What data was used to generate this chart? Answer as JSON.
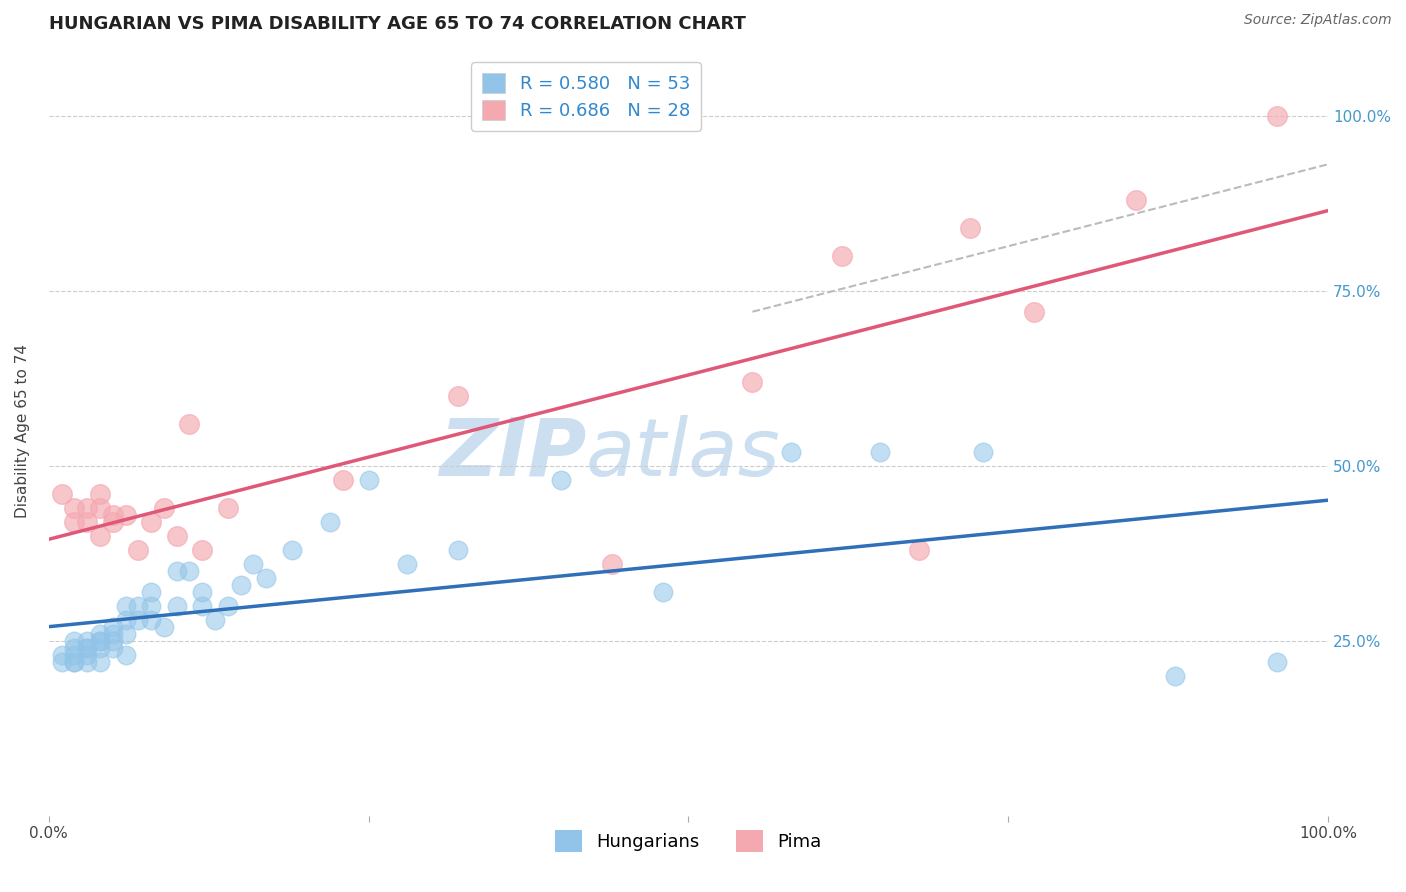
{
  "title": "HUNGARIAN VS PIMA DISABILITY AGE 65 TO 74 CORRELATION CHART",
  "ylabel": "Disability Age 65 to 74",
  "source_text": "Source: ZipAtlas.com",
  "legend_r1": "R = 0.580",
  "legend_n1": "N = 53",
  "legend_r2": "R = 0.686",
  "legend_n2": "N = 28",
  "hungarian_color": "#91c4e8",
  "pima_color": "#f4a8b0",
  "hungarian_line_color": "#3070b8",
  "pima_line_color": "#e05878",
  "dashed_line_color": "#bbbbbb",
  "watermark_color": "#ccdff0",
  "background_color": "#ffffff",
  "grid_color": "#cccccc",
  "ytick_labels": [
    "25.0%",
    "50.0%",
    "75.0%",
    "100.0%"
  ],
  "ytick_values": [
    0.25,
    0.5,
    0.75,
    1.0
  ],
  "xlim": [
    0.0,
    1.0
  ],
  "ylim": [
    0.0,
    1.1
  ],
  "hungarian_x": [
    0.01,
    0.01,
    0.02,
    0.02,
    0.02,
    0.02,
    0.02,
    0.03,
    0.03,
    0.03,
    0.03,
    0.03,
    0.04,
    0.04,
    0.04,
    0.04,
    0.04,
    0.05,
    0.05,
    0.05,
    0.05,
    0.06,
    0.06,
    0.06,
    0.06,
    0.07,
    0.07,
    0.08,
    0.08,
    0.08,
    0.09,
    0.1,
    0.1,
    0.11,
    0.12,
    0.12,
    0.13,
    0.14,
    0.15,
    0.16,
    0.17,
    0.19,
    0.22,
    0.25,
    0.28,
    0.32,
    0.4,
    0.48,
    0.58,
    0.65,
    0.73,
    0.88,
    0.96
  ],
  "hungarian_y": [
    0.23,
    0.22,
    0.23,
    0.22,
    0.24,
    0.25,
    0.22,
    0.22,
    0.23,
    0.24,
    0.25,
    0.24,
    0.22,
    0.24,
    0.25,
    0.26,
    0.25,
    0.24,
    0.25,
    0.26,
    0.27,
    0.23,
    0.26,
    0.28,
    0.3,
    0.28,
    0.3,
    0.3,
    0.32,
    0.28,
    0.27,
    0.3,
    0.35,
    0.35,
    0.32,
    0.3,
    0.28,
    0.3,
    0.33,
    0.36,
    0.34,
    0.38,
    0.42,
    0.48,
    0.36,
    0.38,
    0.48,
    0.32,
    0.52,
    0.52,
    0.52,
    0.2,
    0.22
  ],
  "pima_x": [
    0.01,
    0.02,
    0.02,
    0.03,
    0.03,
    0.04,
    0.04,
    0.04,
    0.05,
    0.05,
    0.06,
    0.07,
    0.08,
    0.09,
    0.1,
    0.11,
    0.12,
    0.14,
    0.23,
    0.32,
    0.44,
    0.55,
    0.62,
    0.68,
    0.72,
    0.77,
    0.85,
    0.96
  ],
  "pima_y": [
    0.46,
    0.42,
    0.44,
    0.42,
    0.44,
    0.44,
    0.4,
    0.46,
    0.42,
    0.43,
    0.43,
    0.38,
    0.42,
    0.44,
    0.4,
    0.56,
    0.38,
    0.44,
    0.48,
    0.6,
    0.36,
    0.62,
    0.8,
    0.38,
    0.84,
    0.72,
    0.88,
    1.0
  ],
  "title_fontsize": 13,
  "label_fontsize": 11,
  "tick_fontsize": 11,
  "legend_fontsize": 13
}
